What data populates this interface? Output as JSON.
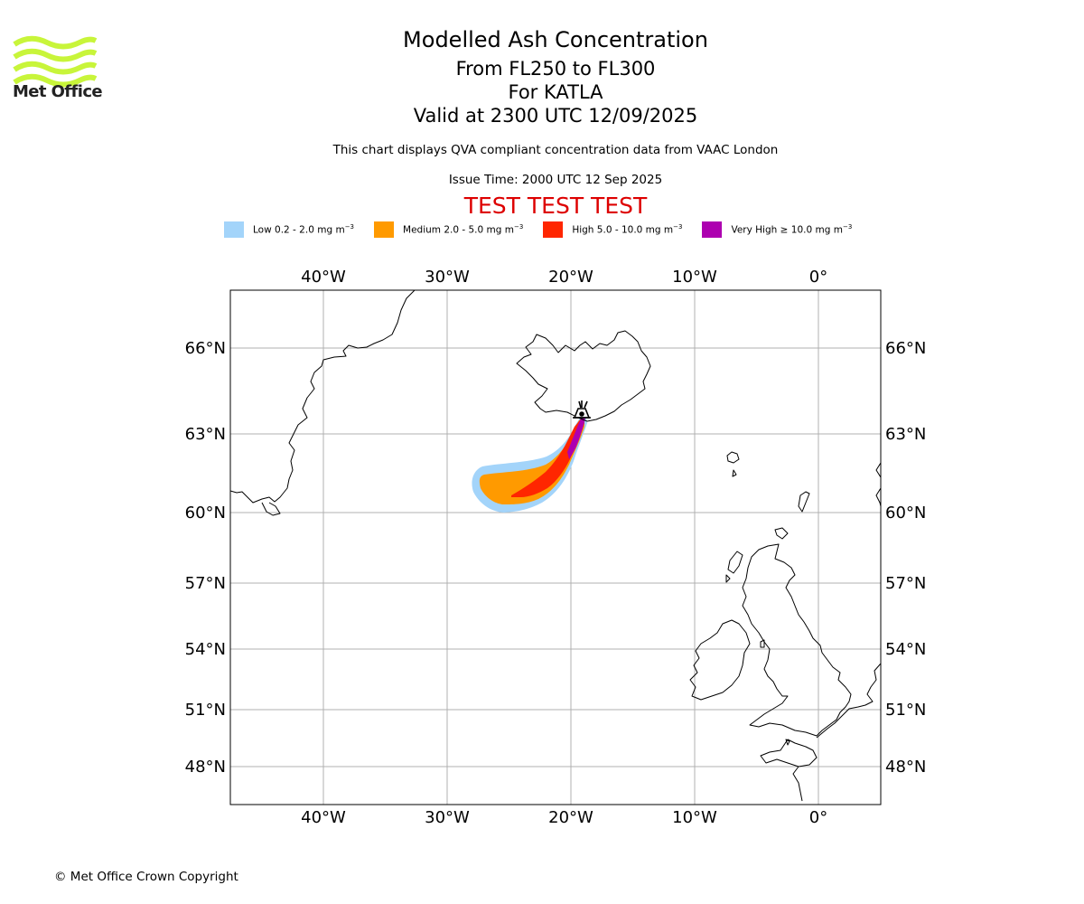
{
  "header": {
    "title": "Modelled Ash Concentration",
    "level_range": "From FL250 to FL300",
    "volcano": "For KATLA",
    "valid_time": "Valid at 2300 UTC 12/09/2025",
    "description": "This chart displays QVA compliant concentration data from VAAC London",
    "issue_time": "Issue Time: 2000 UTC 12 Sep 2025",
    "test_banner": "TEST TEST TEST"
  },
  "logo": {
    "text": "Met Office",
    "color": "#c8f53a"
  },
  "legend": [
    {
      "label": "Low 0.2 - 2.0 mg m",
      "sup": "−3",
      "color": "#a3d4fa"
    },
    {
      "label": "Medium 2.0 - 5.0 mg m",
      "sup": "−3",
      "color": "#ff9a00"
    },
    {
      "label": "High 5.0 - 10.0 mg m",
      "sup": "−3",
      "color": "#ff2600"
    },
    {
      "label": "Very High  ≥  10.0 mg m",
      "sup": "−3",
      "color": "#ad00b0"
    }
  ],
  "map": {
    "lon_range": [
      -47.5,
      5
    ],
    "lat_range": [
      46.5,
      68.5
    ],
    "lon_ticks": [
      {
        "value": -40,
        "label": "40°W"
      },
      {
        "value": -30,
        "label": "30°W"
      },
      {
        "value": -20,
        "label": "20°W"
      },
      {
        "value": -10,
        "label": "10°W"
      },
      {
        "value": 0,
        "label": "0°"
      }
    ],
    "lat_ticks": [
      {
        "value": 66,
        "label": "66°N"
      },
      {
        "value": 63,
        "label": "63°N"
      },
      {
        "value": 60,
        "label": "60°N"
      },
      {
        "value": 57,
        "label": "57°N"
      },
      {
        "value": 54,
        "label": "54°N"
      },
      {
        "value": 51,
        "label": "51°N"
      },
      {
        "value": 48,
        "label": "48°N"
      }
    ],
    "volcano_location": {
      "lon": -19.05,
      "lat": 63.63,
      "icon": "volcano-icon"
    },
    "grid": true
  },
  "footer": {
    "copyright": "© Met Office Crown Copyright"
  }
}
